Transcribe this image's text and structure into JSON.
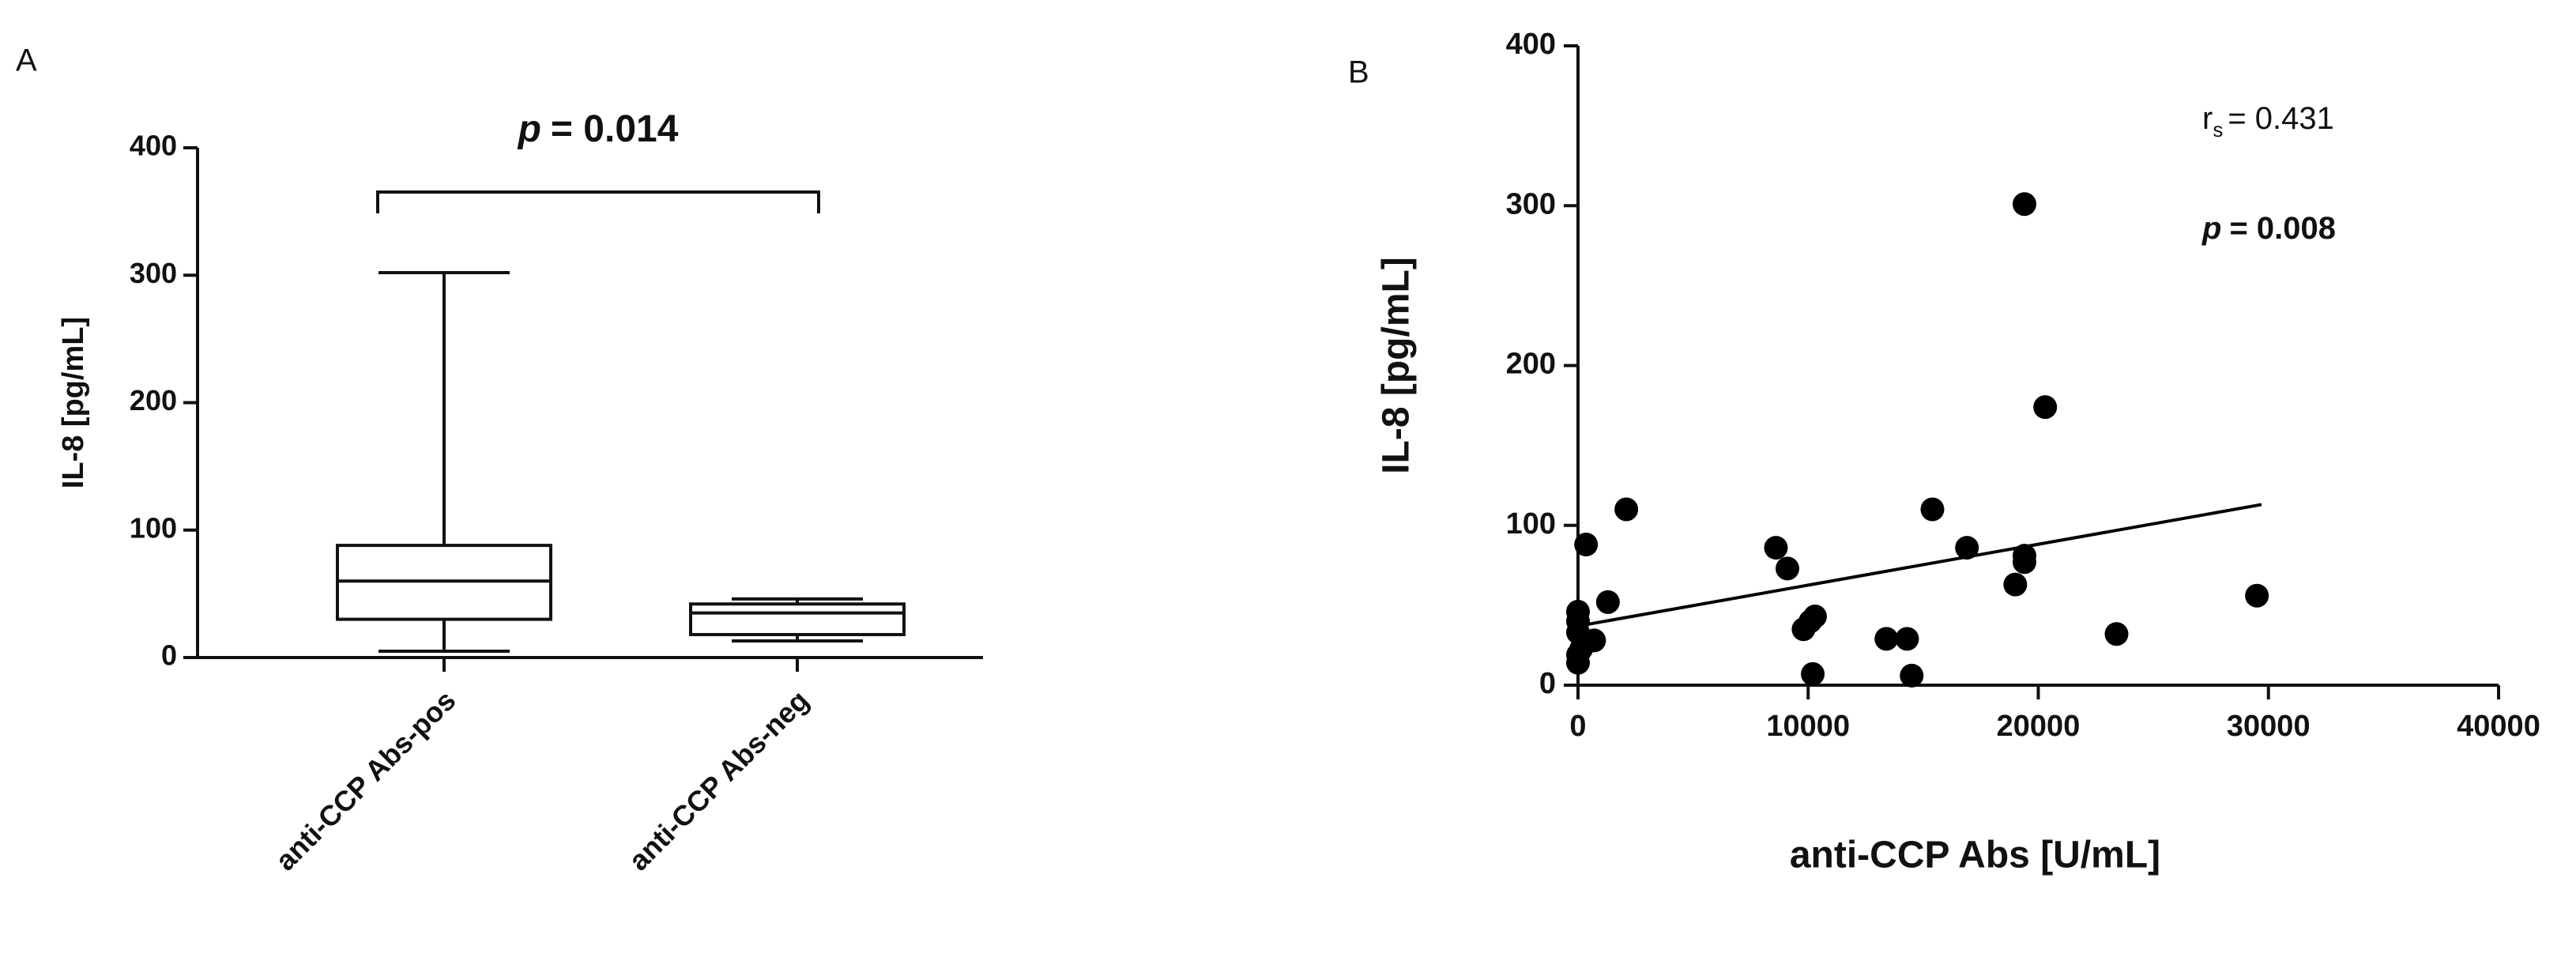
{
  "chart_data": [
    {
      "type": "box",
      "panel": "A",
      "ylabel": "IL-8 [pg/mL]",
      "annotation": {
        "symbol": "p",
        "text": "= 0.014"
      },
      "categories": [
        "anti-CCP Abs-pos",
        "anti-CCP Abs-neg"
      ],
      "min": [
        5,
        13
      ],
      "q1": [
        30,
        18
      ],
      "median": [
        60,
        35
      ],
      "q3": [
        88,
        42
      ],
      "max": [
        302,
        46
      ],
      "ylim": [
        0,
        400
      ],
      "yticks": [
        0,
        100,
        200,
        300,
        400
      ]
    },
    {
      "type": "scatter",
      "panel": "B",
      "xlabel": "anti-CCP Abs [U/mL]",
      "ylabel": "IL-8 [pg/mL]",
      "annotations": {
        "r": "r",
        "r_sub": "s",
        "r_text": "= 0.431",
        "p": "p",
        "p_text": "= 0.008"
      },
      "x": [
        350,
        2100,
        1300,
        700,
        0,
        0,
        0,
        0,
        0,
        150,
        8600,
        9100,
        9800,
        10100,
        10300,
        10200,
        13400,
        14300,
        14500,
        15400,
        16900,
        19000,
        19400,
        19400,
        19400,
        20300,
        23400,
        29500
      ],
      "y": [
        88,
        110,
        52,
        28,
        40,
        46,
        33,
        19,
        14,
        23,
        86,
        73,
        35,
        40,
        43,
        7,
        29,
        29,
        6,
        110,
        86,
        63,
        301,
        81,
        77,
        174,
        32,
        56
      ],
      "trendline": {
        "x": [
          0,
          29700
        ],
        "y": [
          37,
          113
        ]
      },
      "color": "#000000",
      "xlim": [
        0,
        40000
      ],
      "xticks": [
        0,
        10000,
        20000,
        30000,
        40000
      ],
      "ylim": [
        0,
        400
      ],
      "yticks": [
        0,
        100,
        200,
        300,
        400
      ]
    }
  ]
}
